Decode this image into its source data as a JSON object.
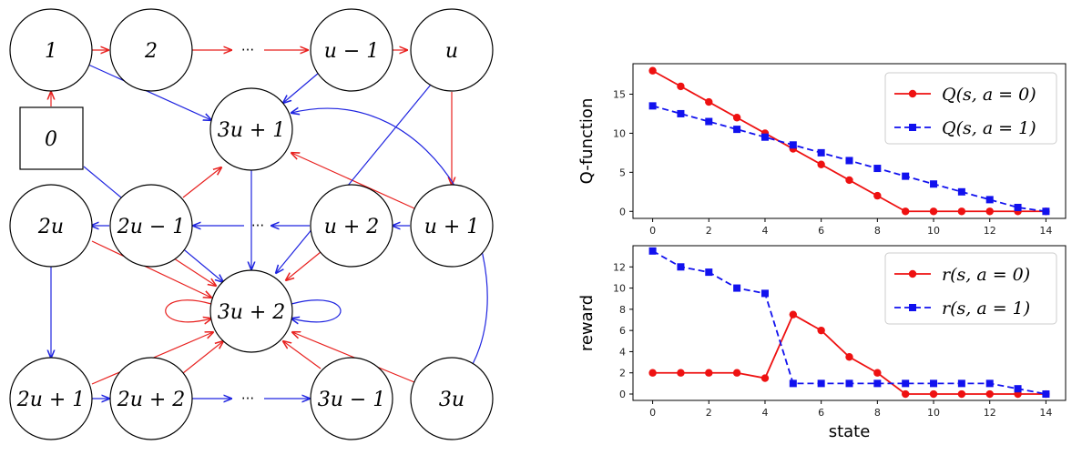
{
  "diagram": {
    "nodes": [
      {
        "id": "n1",
        "label": "1"
      },
      {
        "id": "n2",
        "label": "2"
      },
      {
        "id": "nu1",
        "label": "u − 1"
      },
      {
        "id": "nu",
        "label": "u"
      },
      {
        "id": "n0",
        "label": "0"
      },
      {
        "id": "n3u1",
        "label": "3u + 1"
      },
      {
        "id": "n2u",
        "label": "2u"
      },
      {
        "id": "n2u1m",
        "label": "2u − 1"
      },
      {
        "id": "nup2",
        "label": "u + 2"
      },
      {
        "id": "nup1",
        "label": "u + 1"
      },
      {
        "id": "n3u2",
        "label": "3u + 2"
      },
      {
        "id": "n2up1",
        "label": "2u + 1"
      },
      {
        "id": "n2up2",
        "label": "2u + 2"
      },
      {
        "id": "n3um1",
        "label": "3u − 1"
      },
      {
        "id": "n3u",
        "label": "3u"
      }
    ],
    "dots": "···",
    "colors": {
      "action0": "#e8211f",
      "action1": "#1f24e0"
    }
  },
  "chart_data": [
    {
      "type": "line",
      "ylabel": "Q-function",
      "xlabel": "",
      "x": [
        0,
        1,
        2,
        3,
        4,
        5,
        6,
        7,
        8,
        9,
        10,
        11,
        12,
        13,
        14
      ],
      "xticks": [
        0,
        2,
        4,
        6,
        8,
        10,
        12,
        14
      ],
      "yticks": [
        0,
        5,
        10,
        15
      ],
      "xlim": [
        -0.7,
        14.7
      ],
      "ylim": [
        -0.9,
        18.9
      ],
      "legend": "top-right",
      "series": [
        {
          "name": "Q(s, a = 0)",
          "color": "#ee1111",
          "marker": "circle",
          "dash": "solid",
          "values": [
            18,
            16,
            14,
            12,
            10,
            8,
            6,
            4,
            2,
            0,
            0,
            0,
            0,
            0,
            0
          ]
        },
        {
          "name": "Q(s, a = 1)",
          "color": "#1111ee",
          "marker": "square",
          "dash": "dashed",
          "values": [
            13.5,
            12.5,
            11.5,
            10.5,
            9.5,
            8.5,
            7.5,
            6.5,
            5.5,
            4.5,
            3.5,
            2.5,
            1.5,
            0.5,
            0
          ]
        }
      ]
    },
    {
      "type": "line",
      "ylabel": "reward",
      "xlabel": "state",
      "x": [
        0,
        1,
        2,
        3,
        4,
        5,
        6,
        7,
        8,
        9,
        10,
        11,
        12,
        13,
        14
      ],
      "xticks": [
        0,
        2,
        4,
        6,
        8,
        10,
        12,
        14
      ],
      "yticks": [
        0,
        2,
        4,
        6,
        8,
        10,
        12
      ],
      "xlim": [
        -0.7,
        14.7
      ],
      "ylim": [
        -0.6,
        14.0
      ],
      "legend": "top-right",
      "series": [
        {
          "name": "r(s, a = 0)",
          "color": "#ee1111",
          "marker": "circle",
          "dash": "solid",
          "values": [
            2,
            2,
            2,
            2,
            1.5,
            7.5,
            6,
            3.5,
            2,
            0,
            0,
            0,
            0,
            0,
            0
          ]
        },
        {
          "name": "r(s, a = 1)",
          "color": "#1111ee",
          "marker": "square",
          "dash": "dashed",
          "values": [
            13.5,
            12,
            11.5,
            10,
            9.5,
            1,
            1,
            1,
            1,
            1,
            1,
            1,
            1,
            0.5,
            0
          ]
        }
      ]
    }
  ]
}
